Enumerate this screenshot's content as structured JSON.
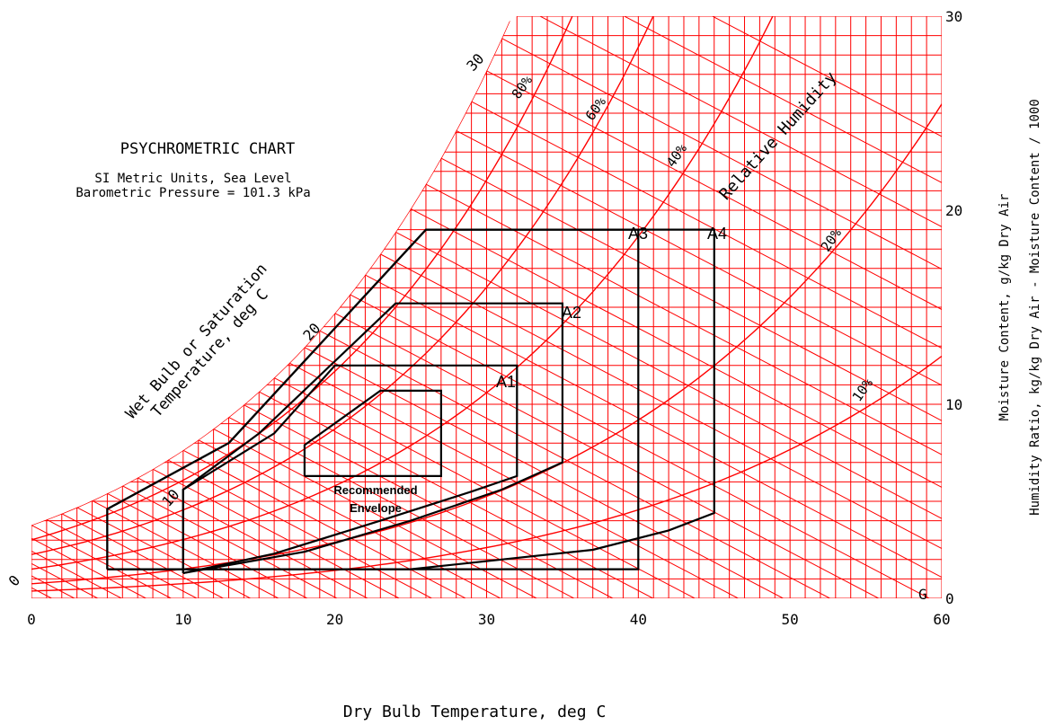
{
  "chart_data": {
    "type": "psychrometric",
    "title": "PSYCHROMETRIC CHART",
    "subtitle_lines": [
      "SI Metric Units, Sea Level",
      "Barometric Pressure = 101.3 kPa"
    ],
    "xlabel": "Dry Bulb Temperature, deg C",
    "ylabel_lines": [
      "Moisture Content, g/kg Dry Air",
      "Humidity Ratio, kg/kg Dry Air - Moisture Content / 1000"
    ],
    "wetbulb_label_lines": [
      "Wet Bulb or Saturation",
      "Temperature, deg C"
    ],
    "rh_axis_label": "Relative Humidity",
    "xlim": [
      0,
      60
    ],
    "ylim": [
      0,
      30
    ],
    "x_ticks": [
      "0",
      "10",
      "20",
      "30",
      "40",
      "50",
      "60"
    ],
    "y_ticks": [
      "0",
      "10",
      "20",
      "30"
    ],
    "wetbulb_ticks": [
      {
        "label": "0",
        "t": 0
      },
      {
        "label": "10",
        "t": 10
      },
      {
        "label": "20",
        "t": 20
      },
      {
        "label": "30",
        "t": 30
      }
    ],
    "rh_curves": [
      {
        "label": "",
        "rh": 100
      },
      {
        "label": "80%",
        "rh": 80
      },
      {
        "label": "60%",
        "rh": 60
      },
      {
        "label": "40%",
        "rh": 40
      },
      {
        "label": "20%",
        "rh": 20
      },
      {
        "label": "10%",
        "rh": 10
      }
    ],
    "envelopes": [
      {
        "name": "A1",
        "points": [
          [
            10,
            1.3
          ],
          [
            10,
            5.6
          ],
          [
            16,
            8.5
          ],
          [
            20,
            12.0
          ],
          [
            32,
            12.0
          ],
          [
            32,
            6.3
          ],
          [
            29,
            5.5
          ],
          [
            23,
            4.0
          ],
          [
            16,
            2.3
          ],
          [
            10,
            1.3
          ]
        ]
      },
      {
        "name": "A2",
        "points": [
          [
            10,
            1.3
          ],
          [
            10,
            5.6
          ],
          [
            15,
            8.5
          ],
          [
            24,
            15.2
          ],
          [
            35,
            15.2
          ],
          [
            35,
            7.0
          ],
          [
            31,
            5.6
          ],
          [
            25,
            4.0
          ],
          [
            18,
            2.4
          ],
          [
            10,
            1.3
          ]
        ]
      },
      {
        "name": "A3",
        "points": [
          [
            5,
            1.5
          ],
          [
            5,
            4.6
          ],
          [
            13,
            8.0
          ],
          [
            26,
            19.0
          ],
          [
            40,
            19.0
          ],
          [
            40,
            1.5
          ],
          [
            5,
            1.5
          ]
        ]
      },
      {
        "name": "A4",
        "points": [
          [
            5,
            1.5
          ],
          [
            5,
            4.6
          ],
          [
            13,
            8.0
          ],
          [
            26,
            19.0
          ],
          [
            45,
            19.0
          ],
          [
            45,
            4.4
          ],
          [
            42,
            3.5
          ],
          [
            37,
            2.5
          ],
          [
            25,
            1.5
          ],
          [
            5,
            1.5
          ]
        ]
      }
    ],
    "recommended_envelope": {
      "label_lines": [
        "Recommended",
        "Envelope"
      ],
      "points": [
        [
          18,
          6.3
        ],
        [
          18,
          7.9
        ],
        [
          23,
          10.7
        ],
        [
          27,
          10.7
        ],
        [
          27,
          6.3
        ],
        [
          18,
          6.3
        ]
      ]
    },
    "corner_mark": "G",
    "colors": {
      "grid": "#ff0000",
      "envelope": "#000000",
      "background": "#ffffff"
    }
  }
}
